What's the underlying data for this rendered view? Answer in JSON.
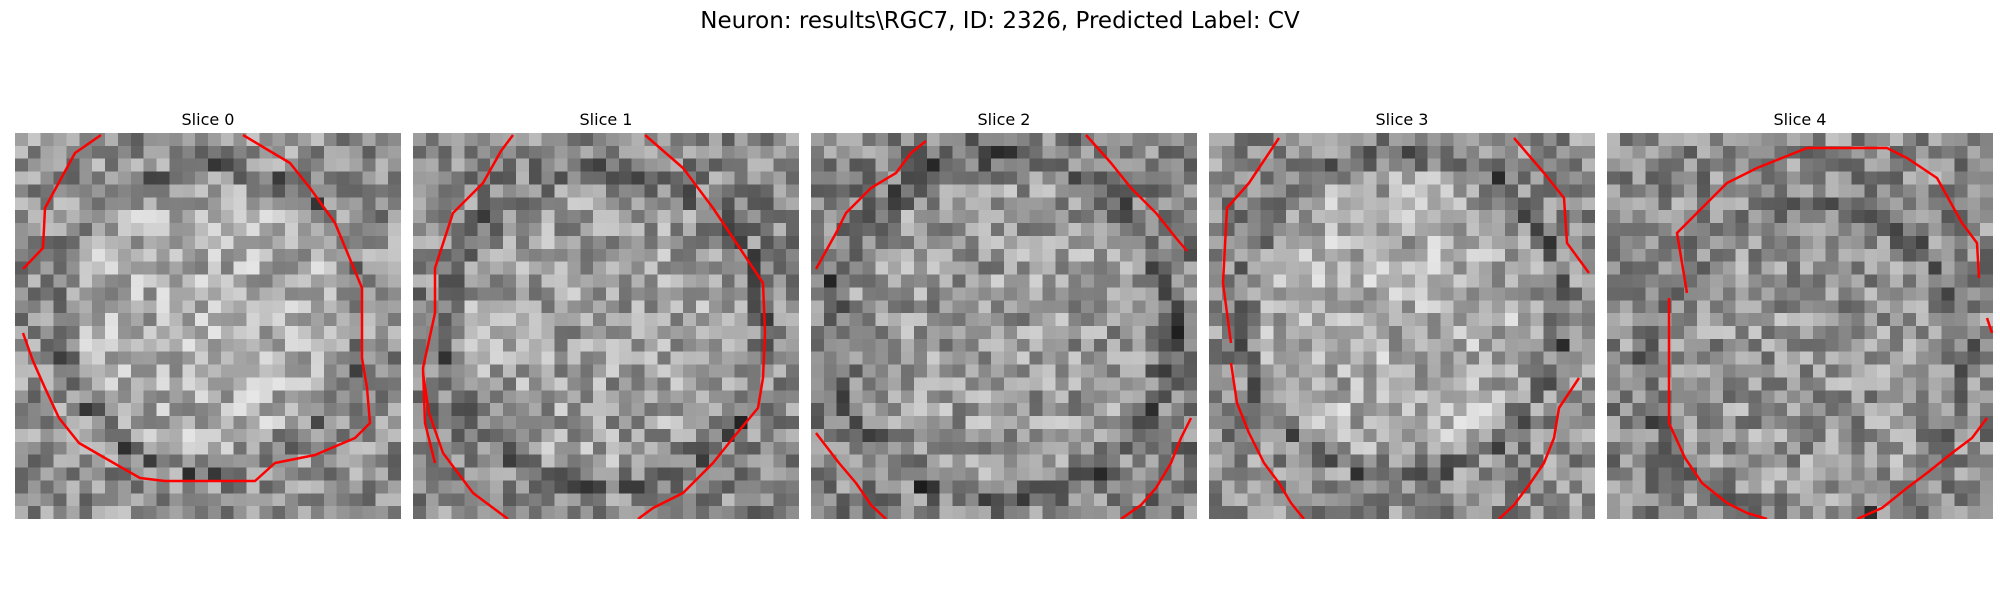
{
  "figure": {
    "title": "Neuron: results\\RGC7, ID: 2326, Predicted Label: CV"
  },
  "slices": [
    {
      "title": "Slice 0"
    },
    {
      "title": "Slice 1"
    },
    {
      "title": "Slice 2"
    },
    {
      "title": "Slice 3"
    },
    {
      "title": "Slice 4"
    }
  ],
  "colors": {
    "contour": "#ff0000"
  }
}
